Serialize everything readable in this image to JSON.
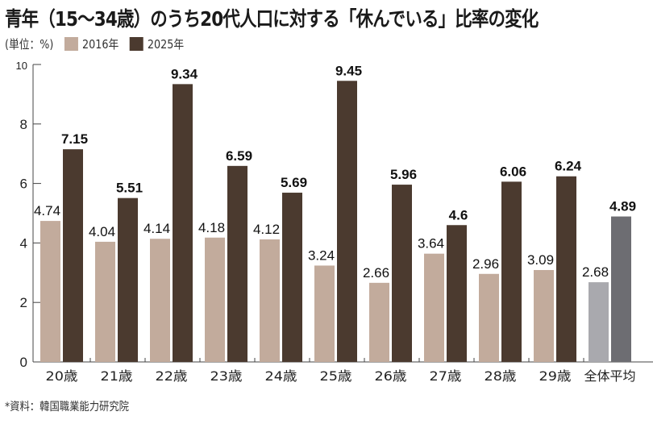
{
  "chart_data": {
    "type": "bar",
    "title": "青年（15～34歳）のうち20代人口に対する「休んでいる」比率の変化",
    "unit": "(単位：%)",
    "categories": [
      "20歳",
      "21歳",
      "22歳",
      "23歳",
      "24歳",
      "25歳",
      "26歳",
      "27歳",
      "28歳",
      "29歳",
      "全体平均"
    ],
    "series": [
      {
        "name": "2016年",
        "values": [
          4.74,
          4.04,
          4.14,
          4.18,
          4.12,
          3.24,
          2.66,
          3.64,
          2.96,
          3.09,
          2.68
        ],
        "color": "#c2ab9c",
        "average_color": "#a9a9ae"
      },
      {
        "name": "2025年",
        "values": [
          7.15,
          5.51,
          9.34,
          6.59,
          5.69,
          9.45,
          5.96,
          4.6,
          6.06,
          6.24,
          4.89
        ],
        "color": "#4b3a2f",
        "average_color": "#6d6d72"
      }
    ],
    "data_labels": [
      [
        "4.74",
        "4.04",
        "4.14",
        "4.18",
        "4.12",
        "3.24",
        "2.66",
        "3.64",
        "2.96",
        "3.09",
        "2.68"
      ],
      [
        "7.15",
        "5.51",
        "9.34",
        "6.59",
        "5.69",
        "9.45",
        "5.96",
        "4.6",
        "6.06",
        "6.24",
        "4.89"
      ]
    ],
    "ylim": [
      0,
      10
    ],
    "yticks": [
      "0",
      "2",
      "4",
      "6",
      "8",
      "10"
    ],
    "grid": false,
    "legend": "top-left",
    "source": "*資料：韓国職業能力研究院"
  }
}
